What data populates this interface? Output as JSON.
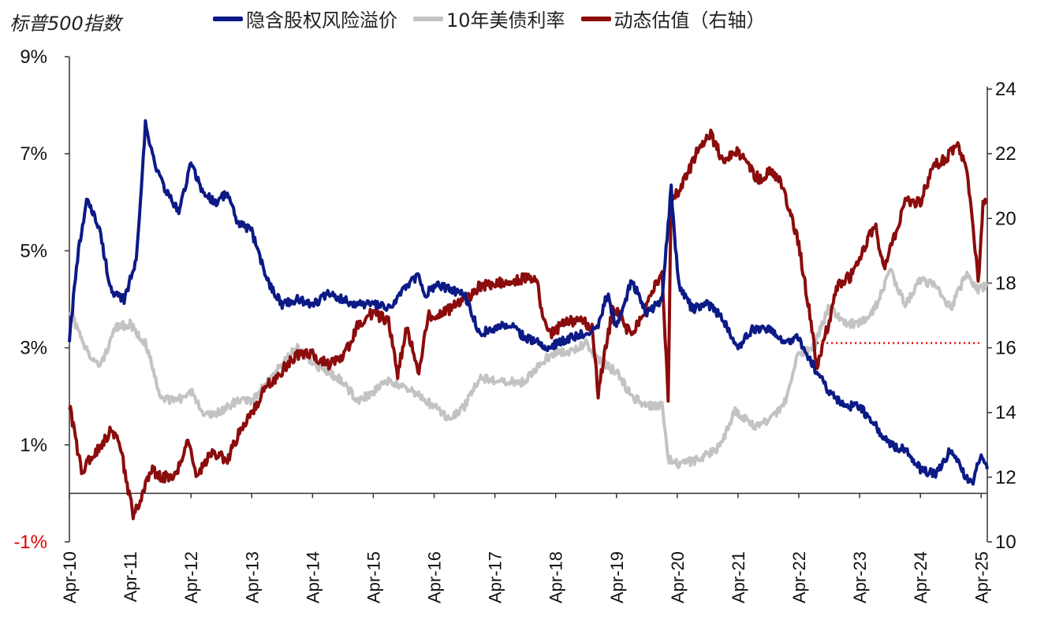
{
  "title": "标普500指数",
  "legend": [
    {
      "label": "隐含股权风险溢价",
      "color": "#0c1a86"
    },
    {
      "label": "10年美债利率",
      "color": "#c3c3c3"
    },
    {
      "label": "动态估值（右轴）",
      "color": "#8b0c0c"
    }
  ],
  "chart_data": {
    "type": "line",
    "title": "标普500指数",
    "x_ticks": [
      "Apr-10",
      "Apr-11",
      "Apr-12",
      "Apr-13",
      "Apr-14",
      "Apr-15",
      "Apr-16",
      "Apr-17",
      "Apr-18",
      "Apr-19",
      "Apr-20",
      "Apr-21",
      "Apr-22",
      "Apr-23",
      "Apr-24",
      "Apr-25"
    ],
    "x_range": [
      2010.25,
      2025.35
    ],
    "y_left": {
      "ticks": [
        "9%",
        "7%",
        "5%",
        "3%",
        "1%",
        "-1%"
      ],
      "tick_values": [
        9,
        7,
        5,
        3,
        1,
        -1
      ],
      "range": [
        -1,
        9
      ],
      "unit": "%"
    },
    "y_right": {
      "ticks": [
        "24",
        "22",
        "20",
        "18",
        "16",
        "14",
        "12",
        "10"
      ],
      "tick_values": [
        24,
        22,
        20,
        18,
        16,
        14,
        12,
        10
      ],
      "range": [
        10,
        25
      ]
    },
    "reference_line": {
      "axis": "left",
      "value": 3.1,
      "from_x": 2022.55,
      "to_x": 2025.35,
      "color": "#e00000",
      "style": "dotted"
    },
    "series": [
      {
        "name": "隐含股权风险溢价",
        "axis": "left",
        "color": "#0c1a86",
        "x": [
          2010.25,
          2010.4,
          2010.55,
          2010.75,
          2010.95,
          2011.15,
          2011.35,
          2011.5,
          2011.65,
          2011.85,
          2012.05,
          2012.25,
          2012.45,
          2012.65,
          2012.85,
          2013.0,
          2013.25,
          2013.5,
          2013.75,
          2014.0,
          2014.25,
          2014.5,
          2014.75,
          2015.0,
          2015.25,
          2015.5,
          2015.75,
          2016.0,
          2016.1,
          2016.3,
          2016.5,
          2016.75,
          2017.0,
          2017.25,
          2017.5,
          2017.75,
          2018.0,
          2018.1,
          2018.3,
          2018.5,
          2018.75,
          2018.95,
          2019.1,
          2019.25,
          2019.5,
          2019.75,
          2020.0,
          2020.15,
          2020.22,
          2020.3,
          2020.5,
          2020.75,
          2021.0,
          2021.25,
          2021.5,
          2021.75,
          2022.0,
          2022.25,
          2022.5,
          2022.75,
          2023.0,
          2023.25,
          2023.5,
          2023.75,
          2024.0,
          2024.25,
          2024.5,
          2024.75,
          2025.0,
          2025.1,
          2025.25,
          2025.35
        ],
        "values": [
          3.2,
          5.0,
          6.1,
          5.4,
          4.1,
          4.0,
          4.8,
          7.6,
          6.8,
          6.2,
          5.8,
          6.8,
          6.2,
          6.0,
          6.2,
          5.6,
          5.4,
          4.4,
          3.9,
          4.0,
          3.9,
          4.1,
          4.0,
          3.9,
          3.9,
          3.8,
          4.2,
          4.5,
          4.1,
          4.3,
          4.2,
          4.1,
          3.3,
          3.4,
          3.5,
          3.2,
          3.1,
          3.0,
          3.1,
          3.2,
          3.3,
          3.5,
          4.1,
          3.4,
          4.4,
          3.7,
          4.0,
          6.3,
          5.0,
          4.2,
          3.8,
          3.9,
          3.6,
          3.0,
          3.4,
          3.4,
          3.1,
          3.2,
          2.6,
          2.1,
          1.8,
          1.8,
          1.4,
          1.0,
          0.9,
          0.5,
          0.4,
          0.9,
          0.3,
          0.2,
          0.8,
          0.5
        ]
      },
      {
        "name": "10年美债利率",
        "axis": "left",
        "color": "#c3c3c3",
        "x": [
          2010.25,
          2010.5,
          2010.75,
          2011.0,
          2011.25,
          2011.5,
          2011.75,
          2012.0,
          2012.25,
          2012.5,
          2012.75,
          2013.0,
          2013.25,
          2013.5,
          2013.75,
          2014.0,
          2014.25,
          2014.5,
          2014.75,
          2015.0,
          2015.25,
          2015.5,
          2015.75,
          2016.0,
          2016.25,
          2016.5,
          2016.75,
          2017.0,
          2017.25,
          2017.5,
          2017.75,
          2018.0,
          2018.25,
          2018.5,
          2018.75,
          2019.0,
          2019.25,
          2019.5,
          2019.75,
          2020.0,
          2020.1,
          2020.3,
          2020.6,
          2020.9,
          2021.0,
          2021.2,
          2021.5,
          2021.75,
          2022.0,
          2022.25,
          2022.5,
          2022.75,
          2023.0,
          2023.25,
          2023.5,
          2023.75,
          2024.0,
          2024.25,
          2024.5,
          2024.75,
          2025.0,
          2025.2,
          2025.35
        ],
        "values": [
          3.8,
          3.0,
          2.6,
          3.4,
          3.5,
          3.1,
          2.0,
          1.9,
          2.1,
          1.6,
          1.7,
          1.9,
          1.9,
          2.3,
          2.7,
          3.0,
          2.7,
          2.5,
          2.3,
          1.9,
          2.1,
          2.3,
          2.2,
          2.0,
          1.8,
          1.5,
          1.8,
          2.4,
          2.3,
          2.3,
          2.3,
          2.7,
          2.9,
          2.9,
          3.1,
          2.7,
          2.5,
          2.0,
          1.8,
          1.8,
          0.7,
          0.6,
          0.7,
          0.9,
          1.1,
          1.7,
          1.4,
          1.5,
          1.8,
          2.9,
          3.0,
          3.9,
          3.5,
          3.5,
          3.8,
          4.6,
          3.9,
          4.4,
          4.3,
          3.8,
          4.5,
          4.2,
          4.3
        ]
      },
      {
        "name": "动态估值（右轴）",
        "axis": "right",
        "color": "#8b0c0c",
        "x": [
          2010.25,
          2010.45,
          2010.7,
          2010.95,
          2011.1,
          2011.3,
          2011.45,
          2011.6,
          2011.8,
          2012.0,
          2012.2,
          2012.35,
          2012.6,
          2012.85,
          2013.0,
          2013.25,
          2013.5,
          2013.75,
          2014.0,
          2014.25,
          2014.5,
          2014.75,
          2015.0,
          2015.25,
          2015.5,
          2015.65,
          2015.8,
          2016.0,
          2016.15,
          2016.35,
          2016.5,
          2016.7,
          2016.85,
          2017.0,
          2017.25,
          2017.5,
          2017.75,
          2017.95,
          2018.0,
          2018.15,
          2018.35,
          2018.5,
          2018.7,
          2018.85,
          2018.95,
          2019.0,
          2019.2,
          2019.45,
          2019.65,
          2019.85,
          2020.0,
          2020.1,
          2020.15,
          2020.25,
          2020.45,
          2020.6,
          2020.8,
          2021.0,
          2021.25,
          2021.4,
          2021.6,
          2021.8,
          2022.0,
          2022.1,
          2022.25,
          2022.4,
          2022.55,
          2022.7,
          2022.9,
          2023.1,
          2023.3,
          2023.5,
          2023.65,
          2023.8,
          2024.0,
          2024.25,
          2024.45,
          2024.65,
          2024.85,
          2025.0,
          2025.1,
          2025.2,
          2025.28,
          2025.35
        ],
        "values": [
          14.2,
          12.2,
          12.8,
          13.5,
          12.8,
          10.8,
          11.5,
          12.2,
          12.0,
          12.0,
          13.2,
          12.0,
          12.8,
          12.5,
          13.2,
          14.0,
          14.8,
          15.3,
          15.8,
          15.8,
          15.5,
          15.7,
          16.7,
          17.1,
          16.8,
          15.2,
          16.6,
          15.2,
          17.0,
          17.0,
          17.2,
          17.5,
          17.6,
          17.9,
          18.0,
          18.0,
          18.2,
          18.0,
          17.2,
          16.4,
          16.7,
          16.8,
          16.8,
          16.6,
          14.6,
          15.2,
          17.3,
          16.5,
          16.8,
          17.8,
          18.4,
          14.4,
          20.7,
          20.8,
          21.5,
          22.2,
          22.6,
          21.8,
          22.1,
          21.6,
          21.2,
          21.5,
          21.0,
          20.2,
          19.2,
          17.4,
          15.4,
          16.5,
          18.0,
          18.2,
          19.0,
          19.8,
          18.5,
          19.3,
          20.5,
          20.5,
          21.6,
          21.8,
          22.3,
          21.5,
          20.2,
          18.0,
          20.5,
          20.5
        ]
      }
    ]
  }
}
